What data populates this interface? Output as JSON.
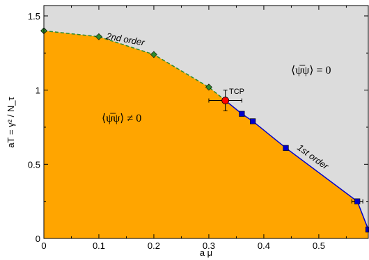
{
  "chart_data": {
    "type": "scatter",
    "title": "",
    "xlabel": "a μ",
    "ylabel": "aT = γ² / N_τ",
    "xlim": [
      0,
      0.59
    ],
    "ylim": [
      0,
      1.57
    ],
    "x_ticks": [
      "0",
      "0.1",
      "0.2",
      "0.3",
      "0.4",
      "0.5"
    ],
    "x_tick_values": [
      0,
      0.1,
      0.2,
      0.3,
      0.4,
      0.5
    ],
    "y_ticks": [
      "0",
      "0.5",
      "1",
      "1.5"
    ],
    "y_tick_values": [
      0,
      0.5,
      1,
      1.5
    ],
    "grid": false,
    "colors": {
      "broken_phase": "#ffa500",
      "symmetric_phase": "#dcdcdc",
      "second_order": "#2e8b2e",
      "first_order": "#0000cc",
      "tcp": "#ff0000"
    },
    "series": [
      {
        "name": "2nd order",
        "line": "dashed",
        "marker": "diamond",
        "x": [
          0.0,
          0.1,
          0.2,
          0.3
        ],
        "y": [
          1.4,
          1.36,
          1.24,
          1.02
        ]
      },
      {
        "name": "1st order",
        "line": "solid",
        "marker": "square",
        "x": [
          0.36,
          0.38,
          0.44,
          0.57,
          0.59
        ],
        "y": [
          0.84,
          0.79,
          0.61,
          0.25,
          0.06
        ],
        "x_err": [
          0,
          0,
          0,
          0.01,
          0
        ]
      },
      {
        "name": "TCP",
        "marker": "circle",
        "x": [
          0.33
        ],
        "y": [
          0.93
        ],
        "x_err": [
          0.03
        ],
        "y_err": [
          0.07
        ]
      }
    ],
    "annotations": {
      "second_order_label": "2nd order",
      "first_order_label": "1st order",
      "tcp_label": "TCP",
      "broken_phase_label": "⟨ψ̅ψ⟩ ≠ 0",
      "symmetric_phase_label": "⟨ψ̅ψ⟩ = 0"
    }
  }
}
